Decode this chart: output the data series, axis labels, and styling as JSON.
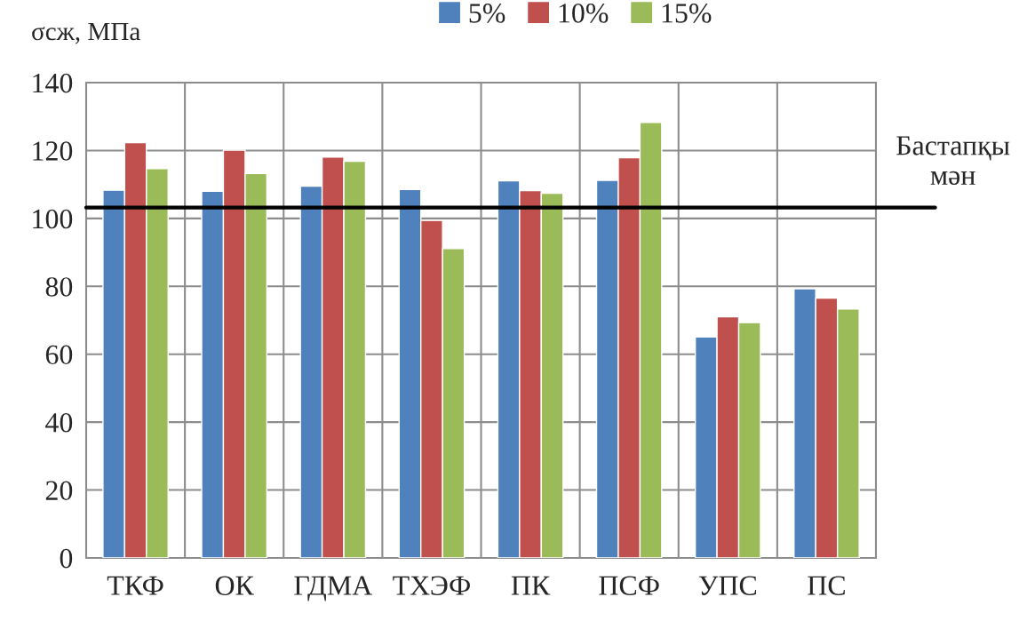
{
  "chart_data": {
    "type": "bar",
    "ylabel": "σсж, МПа",
    "categories": [
      "ТКФ",
      "ОК",
      "ГДМА",
      "ТХЭФ",
      "ПК",
      "ПСФ",
      "УПС",
      "ПС"
    ],
    "series": [
      {
        "name": "5%",
        "color": "#4f81bd",
        "values": [
          108.3,
          108.0,
          109.5,
          108.5,
          111.1,
          111.2,
          65.1,
          79.3
        ]
      },
      {
        "name": "10%",
        "color": "#c0504d",
        "values": [
          122.3,
          120.1,
          118.1,
          99.4,
          108.2,
          117.9,
          71.0,
          76.5
        ]
      },
      {
        "name": "15%",
        "color": "#9bbb59",
        "values": [
          114.7,
          113.2,
          116.8,
          91.1,
          107.4,
          128.3,
          69.3,
          73.3
        ]
      }
    ],
    "ylim": [
      0,
      140
    ],
    "yticks": [
      0,
      20,
      40,
      60,
      80,
      100,
      120,
      140
    ],
    "ref_lines": [
      {
        "axis": "y",
        "value": 103.2,
        "label": "Бастапқы\nмән",
        "color": "#000000"
      }
    ],
    "grid": true,
    "legend": "top"
  }
}
